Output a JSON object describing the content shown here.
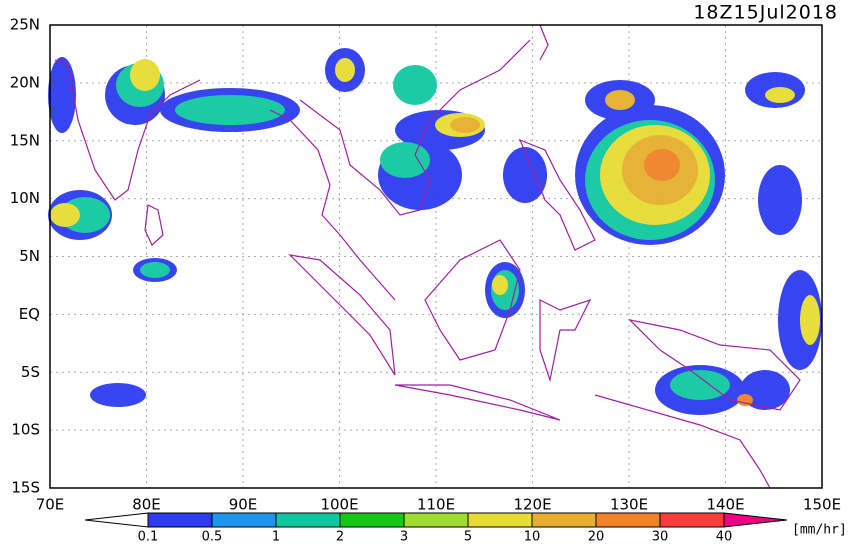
{
  "title": "18Z15Jul2018",
  "map": {
    "xlim": [
      70,
      150
    ],
    "ylim": [
      -15,
      25
    ],
    "xticks": [
      {
        "value": 70,
        "label": "70E"
      },
      {
        "value": 80,
        "label": "80E"
      },
      {
        "value": 90,
        "label": "90E"
      },
      {
        "value": 100,
        "label": "100E"
      },
      {
        "value": 110,
        "label": "110E"
      },
      {
        "value": 120,
        "label": "120E"
      },
      {
        "value": 130,
        "label": "130E"
      },
      {
        "value": 140,
        "label": "140E"
      },
      {
        "value": 150,
        "label": "150E"
      }
    ],
    "yticks": [
      {
        "value": 25,
        "label": "25N"
      },
      {
        "value": 20,
        "label": "20N"
      },
      {
        "value": 15,
        "label": "15N"
      },
      {
        "value": 10,
        "label": "10N"
      },
      {
        "value": 5,
        "label": "5N"
      },
      {
        "value": 0,
        "label": "EQ"
      },
      {
        "value": -5,
        "label": "5S"
      },
      {
        "value": -10,
        "label": "10S"
      },
      {
        "value": -15,
        "label": "15S"
      }
    ]
  },
  "colorbar": {
    "levels": [
      0.1,
      0.5,
      1,
      2,
      3,
      5,
      10,
      20,
      30,
      40
    ],
    "colors": [
      "#ffffff",
      "#2d3cf0",
      "#1e96f0",
      "#10c8a0",
      "#14c814",
      "#a0dc32",
      "#e6dc32",
      "#e6af2d",
      "#f08228",
      "#fa3c3c",
      "#f00082"
    ],
    "units": "[mm/hr]"
  }
}
